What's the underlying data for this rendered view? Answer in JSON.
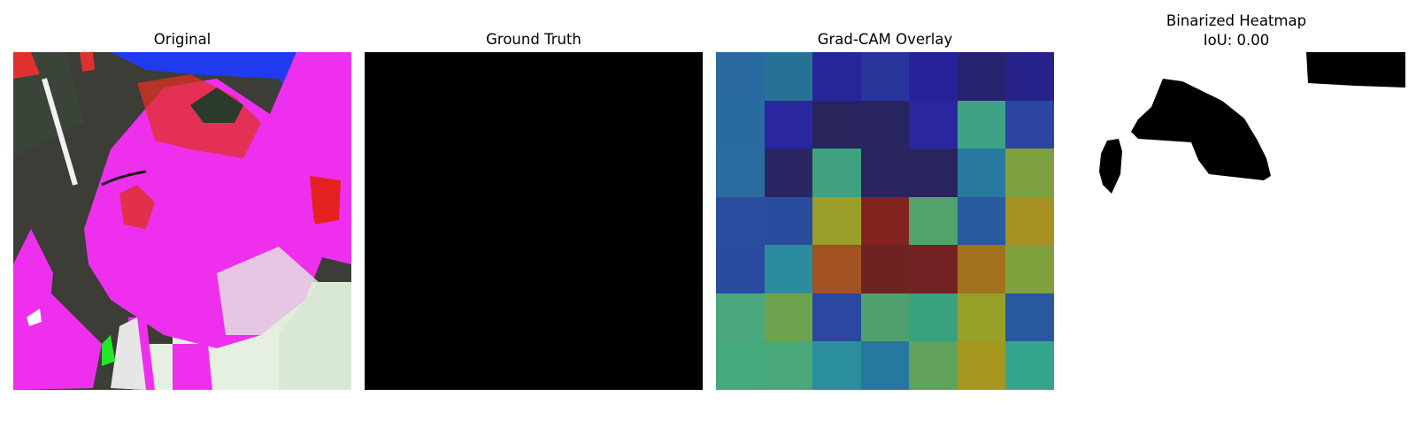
{
  "panels": {
    "original": {
      "title": "Original"
    },
    "ground_truth": {
      "title": "Ground Truth"
    },
    "gradcam": {
      "title": "Grad-CAM Overlay"
    },
    "binarized": {
      "title_line1": "Binarized Heatmap",
      "title_line2": "IoU: 0.00"
    }
  },
  "gradcam_colors": [
    [
      "#2a6aa0",
      "#287196",
      "#25269a",
      "#2a359c",
      "#26239a",
      "#27236f",
      "#26228a"
    ],
    [
      "#286b9f",
      "#2a26a0",
      "#28245c",
      "#28245f",
      "#2a26a0",
      "#3ea385",
      "#2b44a0"
    ],
    [
      "#2a6ba0",
      "#2a2663",
      "#3fa180",
      "#29245d",
      "#29235f",
      "#28799d",
      "#7ea13f"
    ],
    [
      "#2a4d9f",
      "#2a4c9e",
      "#999f29",
      "#842420",
      "#52a36c",
      "#2a5ba0",
      "#a79123"
    ],
    [
      "#2b4b9e",
      "#2a8c9e",
      "#a25222",
      "#6e2321",
      "#722222",
      "#a2721f",
      "#7fa23e"
    ],
    [
      "#4ba77d",
      "#6da34f",
      "#2a489f",
      "#50a06e",
      "#3aa180",
      "#97a128",
      "#28589e"
    ],
    [
      "#44a97c",
      "#4aa77a",
      "#2a8e9d",
      "#2778a0",
      "#60a25c",
      "#a69721",
      "#35a58e"
    ]
  ]
}
